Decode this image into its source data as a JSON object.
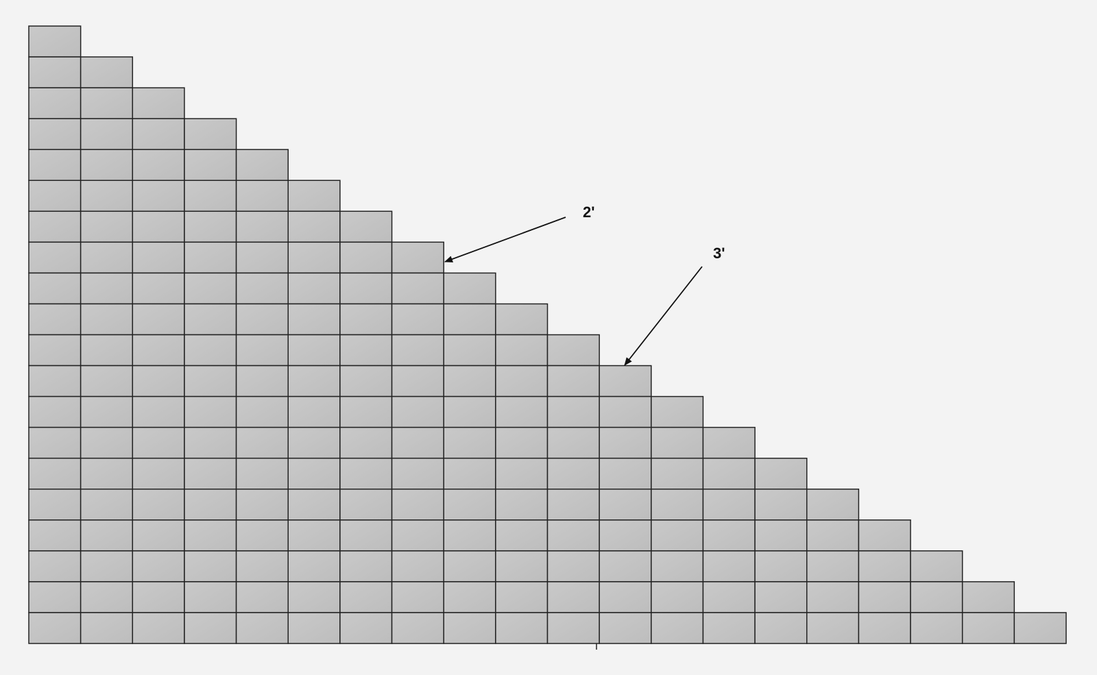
{
  "annotations": [
    {
      "label": "2'"
    },
    {
      "label": "3'"
    }
  ]
}
